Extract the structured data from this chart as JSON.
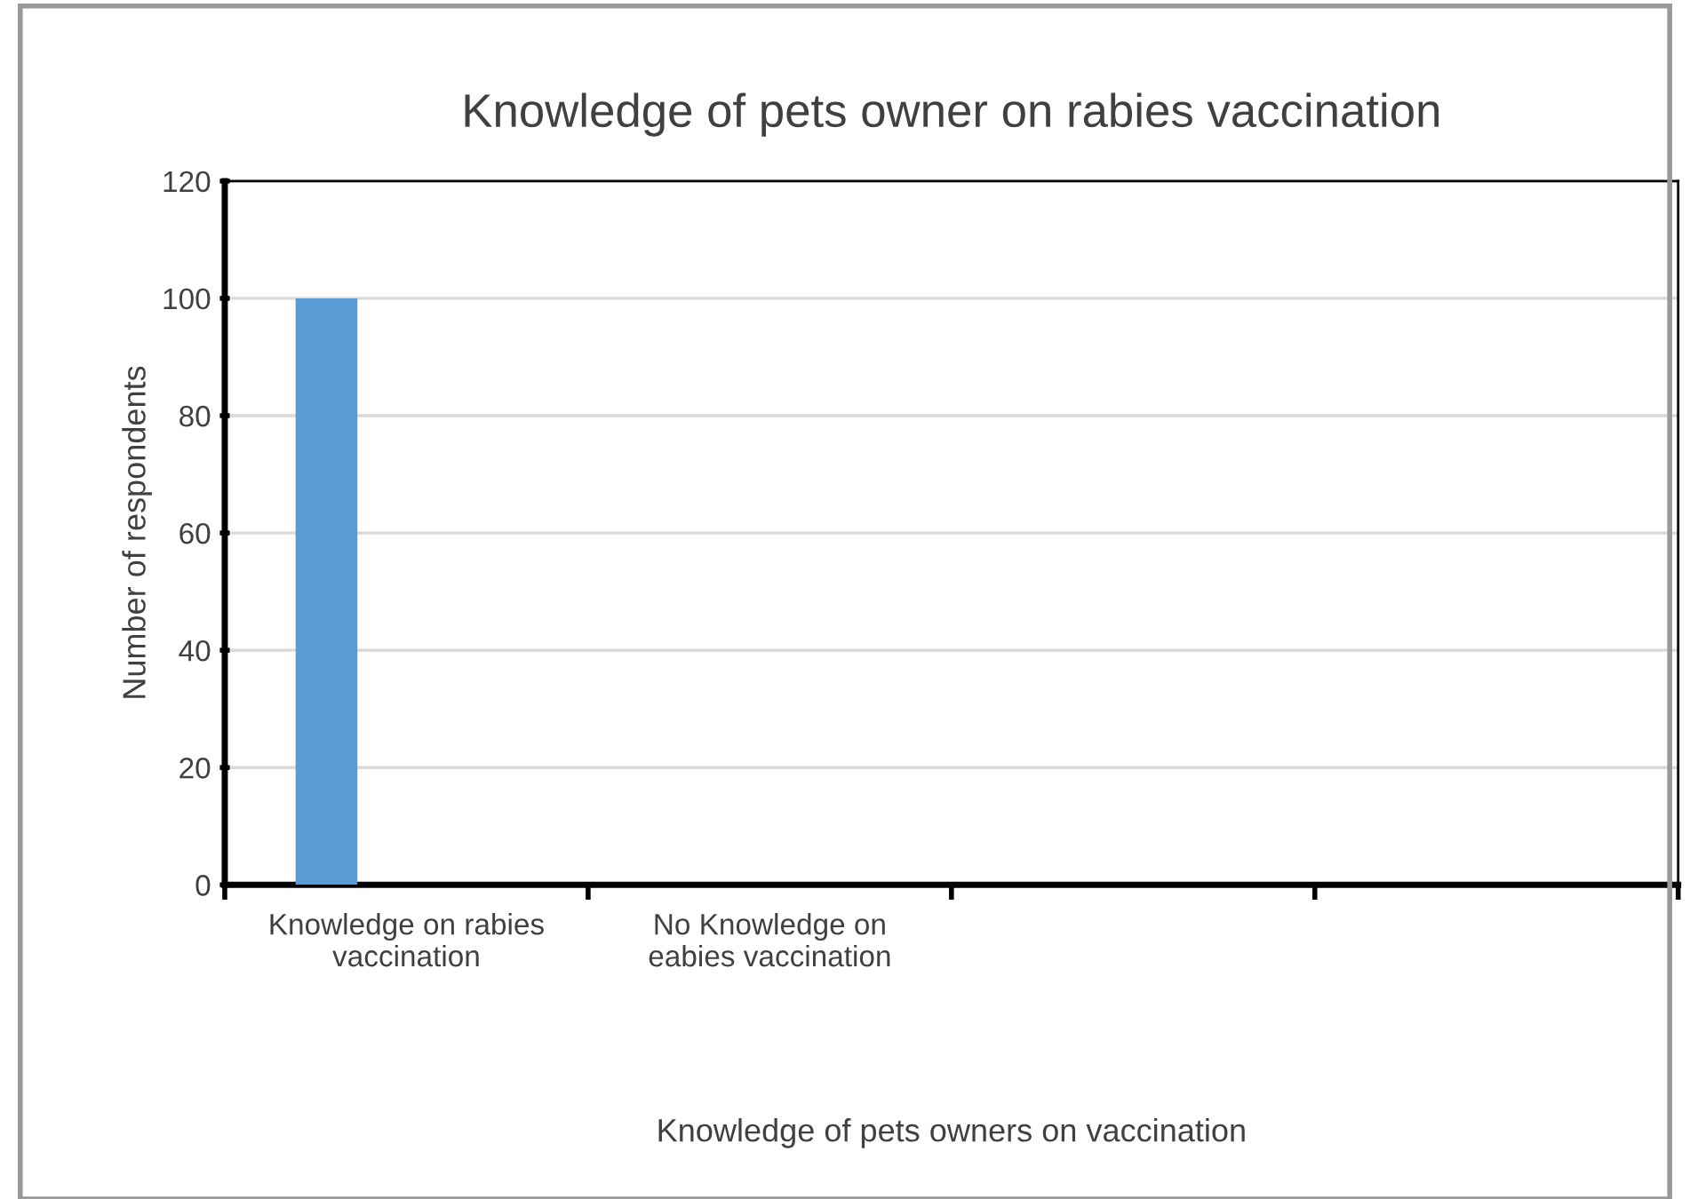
{
  "chart_data": {
    "type": "bar",
    "title": "Knowledge of pets owner on rabies vaccination",
    "xlabel": "Knowledge of pets owners on vaccination",
    "ylabel": "Number of respondents",
    "categories": [
      "Knowledge on rabies\nvaccination",
      "No Knowledge on\neabies vaccination",
      null,
      null
    ],
    "values": [
      100,
      0,
      null,
      null
    ],
    "color": "#5b9bd5",
    "ylim": [
      0,
      120
    ],
    "yticks": [
      0,
      20,
      40,
      60,
      80,
      100,
      120
    ],
    "grid": "y",
    "legend": false
  }
}
